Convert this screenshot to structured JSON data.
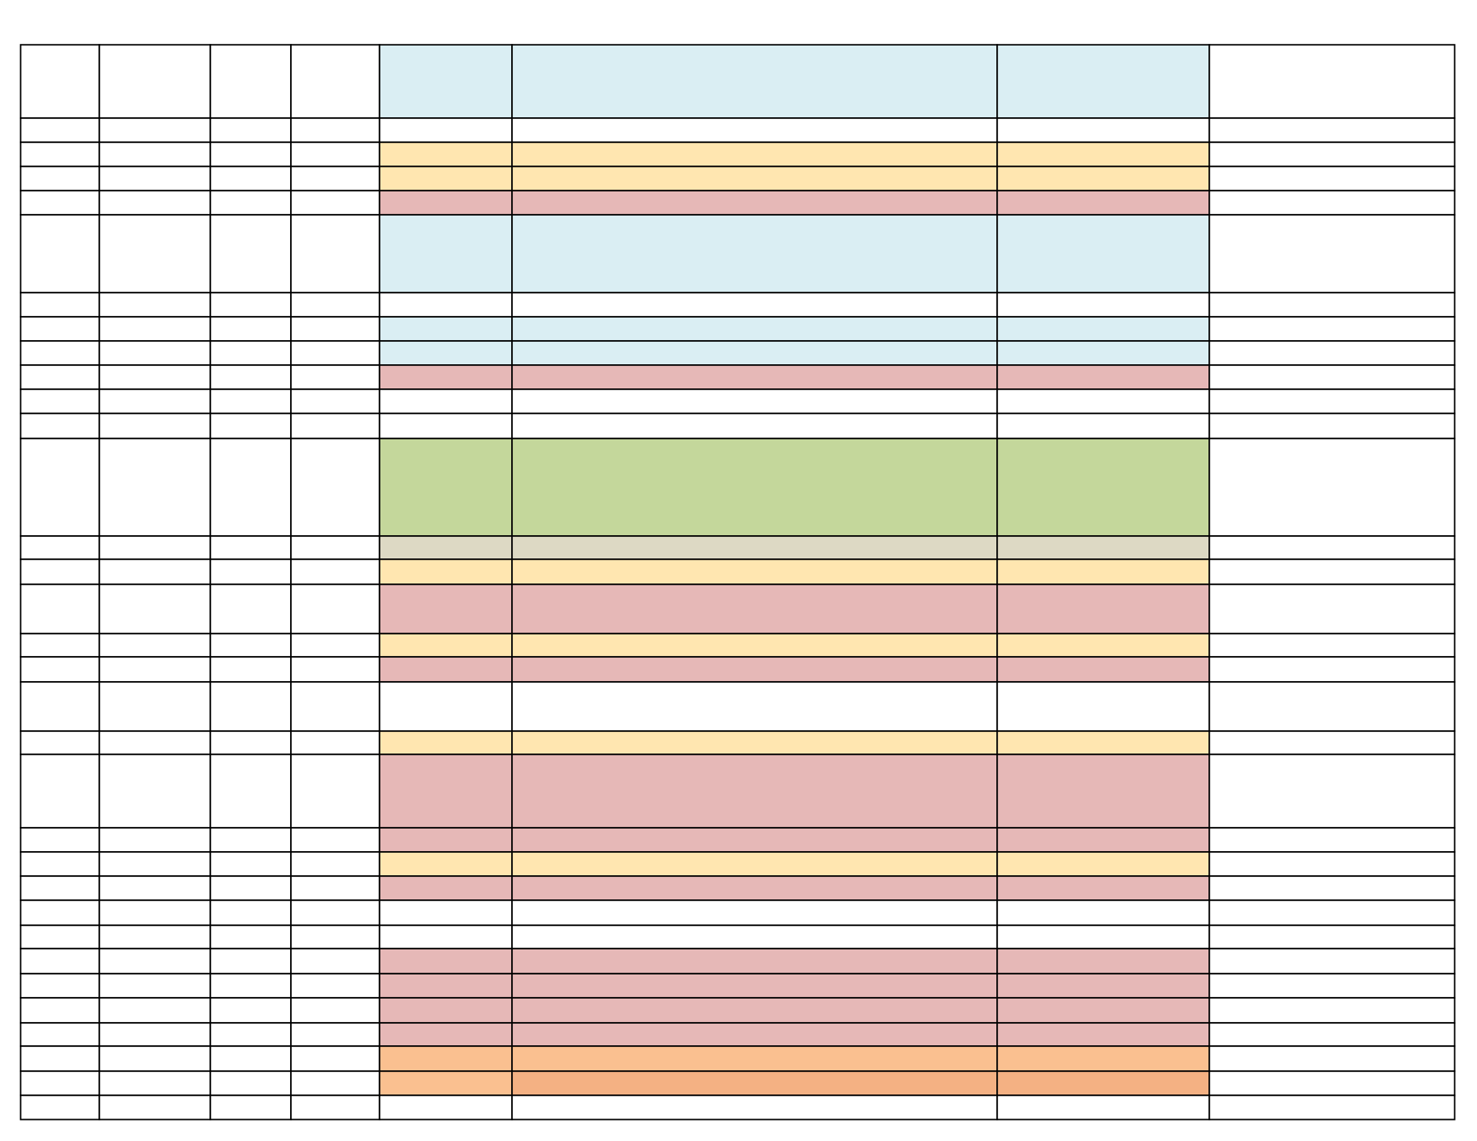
{
  "table": {
    "row_fills": [
      [
        "#daeef3",
        "#daeef3",
        "#daeef3"
      ],
      null,
      [
        "#ffe6b0",
        "#ffe6b0",
        "#ffe6b0"
      ],
      [
        "#ffe6b0",
        "#ffe6b0",
        "#ffe6b0"
      ],
      [
        "#e6b8b7",
        "#e6b8b7",
        "#e6b8b7"
      ],
      [
        "#daeef3",
        "#daeef3",
        "#daeef3"
      ],
      null,
      [
        "#daeef3",
        "#daeef3",
        "#daeef3"
      ],
      [
        "#daeef3",
        "#daeef3",
        "#daeef3"
      ],
      [
        "#e6b8b7",
        "#e6b8b7",
        "#e6b8b7"
      ],
      null,
      null,
      [
        "#c4d79b",
        "#c4d79b",
        "#c4d79b"
      ],
      [
        "#ddd9c4",
        "#ddd9c4",
        "#ddd9c4"
      ],
      [
        "#ffe6b0",
        "#ffe6b0",
        "#ffe6b0"
      ],
      [
        "#e6b8b7",
        "#e6b8b7",
        "#e6b8b7"
      ],
      [
        "#ffe6b0",
        "#ffe6b0",
        "#ffe6b0"
      ],
      [
        "#e6b8b7",
        "#e6b8b7",
        "#e6b8b7"
      ],
      null,
      [
        "#ffe6b0",
        "#ffe6b0",
        "#ffe6b0"
      ],
      [
        "#e6b8b7",
        "#e6b8b7",
        "#e6b8b7"
      ],
      [
        "#e6b8b7",
        "#e6b8b7",
        "#e6b8b7"
      ],
      [
        "#ffe6b0",
        "#ffe6b0",
        "#ffe6b0"
      ],
      [
        "#e6b8b7",
        "#e6b8b7",
        "#e6b8b7"
      ],
      null,
      null,
      [
        "#e6b8b7",
        "#e6b8b7",
        "#e6b8b7"
      ],
      [
        "#e6b8b7",
        "#e6b8b7",
        "#e6b8b7"
      ],
      [
        "#e6b8b7",
        "#e6b8b7",
        "#e6b8b7"
      ],
      [
        "#e6b8b7",
        "#e6b8b7",
        "#e6b8b7"
      ],
      [
        "#fac090",
        "#fac090",
        "#fac090"
      ],
      [
        "#fac090",
        "#f4b183",
        "#f4b183"
      ],
      null
    ]
  }
}
